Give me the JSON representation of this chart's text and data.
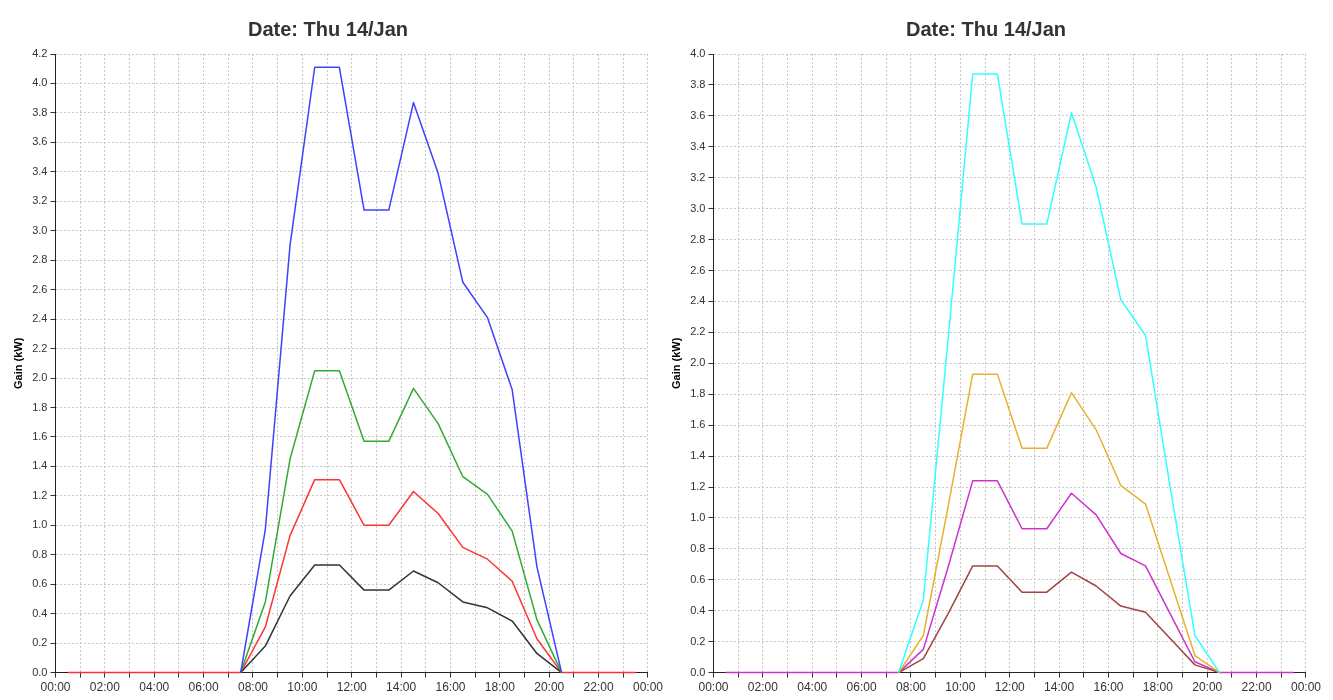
{
  "chart_data": [
    {
      "type": "line",
      "title": "Date: Thu 14/Jan",
      "ylabel": "Gain (kW)",
      "x": [
        0.5,
        1.5,
        2.5,
        3.5,
        4.5,
        5.5,
        6.5,
        7.5,
        8.5,
        9.5,
        10.5,
        11.5,
        12.5,
        13.5,
        14.5,
        15.5,
        16.5,
        17.5,
        18.5,
        19.5,
        20.5,
        21.5,
        22.5,
        23.5
      ],
      "series": [
        {
          "color": "#4040ff",
          "values": [
            null,
            null,
            null,
            null,
            null,
            null,
            null,
            0,
            0.97,
            2.9,
            4.11,
            4.11,
            3.14,
            3.14,
            3.87,
            3.39,
            2.65,
            2.41,
            1.92,
            0.72,
            0,
            null,
            null,
            null
          ]
        },
        {
          "color": "#33aa33",
          "values": [
            null,
            null,
            null,
            null,
            null,
            null,
            null,
            0,
            0.48,
            1.45,
            2.05,
            2.05,
            1.57,
            1.57,
            1.93,
            1.69,
            1.33,
            1.21,
            0.96,
            0.36,
            0,
            null,
            null,
            null
          ]
        },
        {
          "color": "#333333",
          "values": [
            null,
            null,
            null,
            null,
            null,
            null,
            null,
            0,
            0.18,
            0.52,
            0.73,
            0.73,
            0.56,
            0.56,
            0.69,
            0.61,
            0.48,
            0.44,
            0.35,
            0.13,
            0,
            null,
            null,
            null
          ]
        },
        {
          "color": "#ff3333",
          "values": [
            0,
            0,
            0,
            0,
            0,
            0,
            0,
            0,
            0.31,
            0.93,
            1.31,
            1.31,
            1.0,
            1.0,
            1.23,
            1.08,
            0.85,
            0.77,
            0.62,
            0.23,
            0,
            0,
            0,
            0
          ]
        }
      ],
      "xlim": [
        0,
        24
      ],
      "xticks": [
        {
          "value": 0,
          "label": "00:00"
        },
        {
          "value": 1,
          "label": null
        },
        {
          "value": 2,
          "label": "02:00"
        },
        {
          "value": 3,
          "label": null
        },
        {
          "value": 4,
          "label": "04:00"
        },
        {
          "value": 5,
          "label": null
        },
        {
          "value": 6,
          "label": "06:00"
        },
        {
          "value": 7,
          "label": null
        },
        {
          "value": 8,
          "label": "08:00"
        },
        {
          "value": 9,
          "label": null
        },
        {
          "value": 10,
          "label": "10:00"
        },
        {
          "value": 11,
          "label": null
        },
        {
          "value": 12,
          "label": "12:00"
        },
        {
          "value": 13,
          "label": null
        },
        {
          "value": 14,
          "label": "14:00"
        },
        {
          "value": 15,
          "label": null
        },
        {
          "value": 16,
          "label": "16:00"
        },
        {
          "value": 17,
          "label": null
        },
        {
          "value": 18,
          "label": "18:00"
        },
        {
          "value": 19,
          "label": null
        },
        {
          "value": 20,
          "label": "20:00"
        },
        {
          "value": 21,
          "label": null
        },
        {
          "value": 22,
          "label": "22:00"
        },
        {
          "value": 23,
          "label": null
        },
        {
          "value": 24,
          "label": "00:00"
        }
      ],
      "ylim": [
        0,
        4.2
      ],
      "yticks": [
        {
          "value": 0,
          "label": "0.0"
        },
        {
          "value": 0.2,
          "label": "0.2"
        },
        {
          "value": 0.4,
          "label": "0.4"
        },
        {
          "value": 0.6,
          "label": "0.6"
        },
        {
          "value": 0.8,
          "label": "0.8"
        },
        {
          "value": 1,
          "label": "1.0"
        },
        {
          "value": 1.2,
          "label": "1.2"
        },
        {
          "value": 1.4,
          "label": "1.4"
        },
        {
          "value": 1.6,
          "label": "1.6"
        },
        {
          "value": 1.8,
          "label": "1.8"
        },
        {
          "value": 2,
          "label": "2.0"
        },
        {
          "value": 2.2,
          "label": "2.2"
        },
        {
          "value": 2.4,
          "label": "2.4"
        },
        {
          "value": 2.6,
          "label": "2.6"
        },
        {
          "value": 2.8,
          "label": "2.8"
        },
        {
          "value": 3,
          "label": "3.0"
        },
        {
          "value": 3.2,
          "label": "3.2"
        },
        {
          "value": 3.4,
          "label": "3.4"
        },
        {
          "value": 3.6,
          "label": "3.6"
        },
        {
          "value": 3.8,
          "label": "3.8"
        },
        {
          "value": 4,
          "label": "4.0"
        },
        {
          "value": 4.2,
          "label": "4.2"
        }
      ],
      "grid": true,
      "line_style": "solid",
      "marker": "none",
      "legend": false
    },
    {
      "type": "line",
      "title": "Date: Thu 14/Jan",
      "ylabel": "Gain (kW)",
      "x": [
        0.5,
        1.5,
        2.5,
        3.5,
        4.5,
        5.5,
        6.5,
        7.5,
        8.5,
        9.5,
        10.5,
        11.5,
        12.5,
        13.5,
        14.5,
        15.5,
        16.5,
        17.5,
        18.5,
        19.5,
        20.5,
        21.5,
        22.5,
        23.5
      ],
      "series": [
        {
          "color": "#33ffff",
          "values": [
            null,
            null,
            null,
            null,
            null,
            null,
            null,
            0,
            0.47,
            2.15,
            3.87,
            3.87,
            2.9,
            2.9,
            3.62,
            3.14,
            2.41,
            2.18,
            1.2,
            0.24,
            0,
            null,
            null,
            null
          ]
        },
        {
          "color": "#e8b030",
          "values": [
            null,
            null,
            null,
            null,
            null,
            null,
            null,
            0,
            0.24,
            1.07,
            1.93,
            1.93,
            1.45,
            1.45,
            1.81,
            1.57,
            1.21,
            1.09,
            0.6,
            0.11,
            0,
            null,
            null,
            null
          ]
        },
        {
          "color": "#a04444",
          "values": [
            null,
            null,
            null,
            null,
            null,
            null,
            null,
            0,
            0.09,
            0.38,
            0.69,
            0.69,
            0.52,
            0.52,
            0.65,
            0.56,
            0.43,
            0.39,
            0.22,
            0.05,
            0,
            null,
            null,
            null
          ]
        },
        {
          "color": "#cc33cc",
          "values": [
            0,
            0,
            0,
            0,
            0,
            0,
            0,
            0,
            0.15,
            0.68,
            1.24,
            1.24,
            0.93,
            0.93,
            1.16,
            1.02,
            0.77,
            0.69,
            0.38,
            0.07,
            0,
            0,
            0,
            0
          ]
        }
      ],
      "xlim": [
        0,
        24
      ],
      "xticks": [
        {
          "value": 0,
          "label": "00:00"
        },
        {
          "value": 1,
          "label": null
        },
        {
          "value": 2,
          "label": "02:00"
        },
        {
          "value": 3,
          "label": null
        },
        {
          "value": 4,
          "label": "04:00"
        },
        {
          "value": 5,
          "label": null
        },
        {
          "value": 6,
          "label": "06:00"
        },
        {
          "value": 7,
          "label": null
        },
        {
          "value": 8,
          "label": "08:00"
        },
        {
          "value": 9,
          "label": null
        },
        {
          "value": 10,
          "label": "10:00"
        },
        {
          "value": 11,
          "label": null
        },
        {
          "value": 12,
          "label": "12:00"
        },
        {
          "value": 13,
          "label": null
        },
        {
          "value": 14,
          "label": "14:00"
        },
        {
          "value": 15,
          "label": null
        },
        {
          "value": 16,
          "label": "16:00"
        },
        {
          "value": 17,
          "label": null
        },
        {
          "value": 18,
          "label": "18:00"
        },
        {
          "value": 19,
          "label": null
        },
        {
          "value": 20,
          "label": "20:00"
        },
        {
          "value": 21,
          "label": null
        },
        {
          "value": 22,
          "label": "22:00"
        },
        {
          "value": 23,
          "label": null
        },
        {
          "value": 24,
          "label": "00:00"
        }
      ],
      "ylim": [
        0,
        4.0
      ],
      "yticks": [
        {
          "value": 0,
          "label": "0.0"
        },
        {
          "value": 0.2,
          "label": "0.2"
        },
        {
          "value": 0.4,
          "label": "0.4"
        },
        {
          "value": 0.6,
          "label": "0.6"
        },
        {
          "value": 0.8,
          "label": "0.8"
        },
        {
          "value": 1,
          "label": "1.0"
        },
        {
          "value": 1.2,
          "label": "1.2"
        },
        {
          "value": 1.4,
          "label": "1.4"
        },
        {
          "value": 1.6,
          "label": "1.6"
        },
        {
          "value": 1.8,
          "label": "1.8"
        },
        {
          "value": 2,
          "label": "2.0"
        },
        {
          "value": 2.2,
          "label": "2.2"
        },
        {
          "value": 2.4,
          "label": "2.4"
        },
        {
          "value": 2.6,
          "label": "2.6"
        },
        {
          "value": 2.8,
          "label": "2.8"
        },
        {
          "value": 3,
          "label": "3.0"
        },
        {
          "value": 3.2,
          "label": "3.2"
        },
        {
          "value": 3.4,
          "label": "3.4"
        },
        {
          "value": 3.6,
          "label": "3.6"
        },
        {
          "value": 3.8,
          "label": "3.8"
        },
        {
          "value": 4,
          "label": "4.0"
        }
      ],
      "grid": true,
      "line_style": "solid",
      "marker": "none",
      "legend": false
    }
  ]
}
